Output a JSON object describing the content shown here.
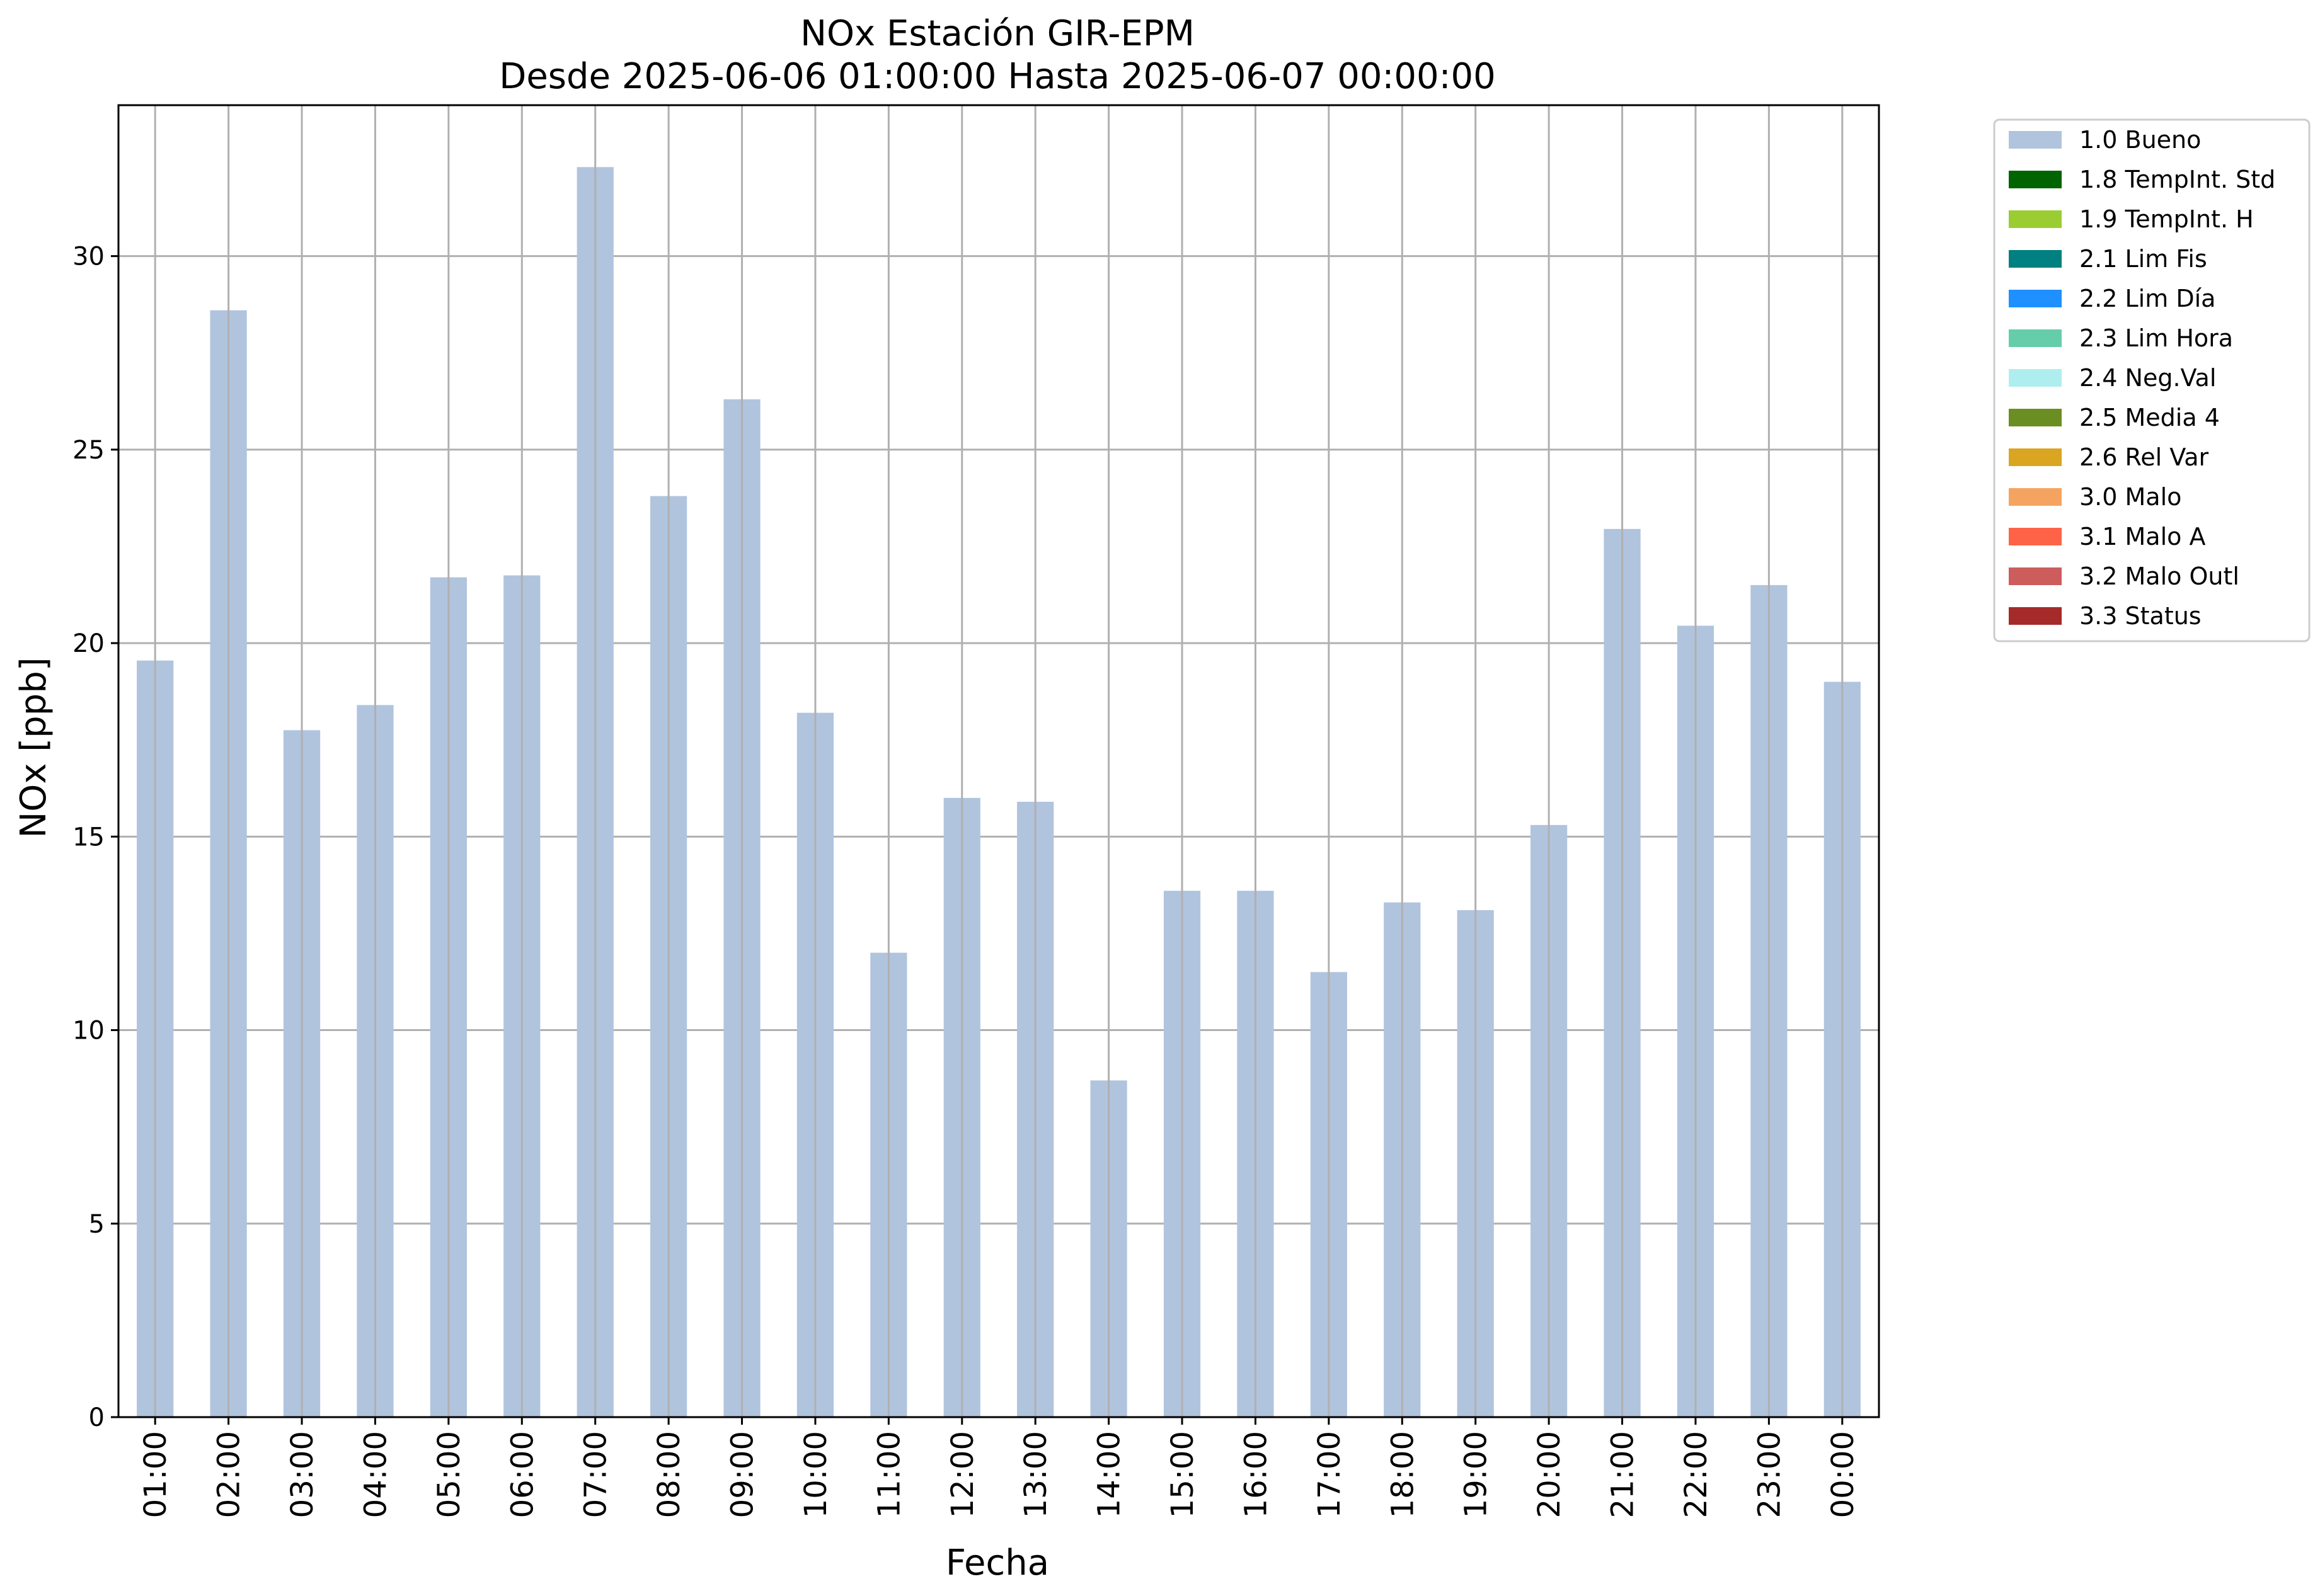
{
  "chart_data": {
    "type": "bar",
    "title": "NOx Estación GIR-EPM",
    "subtitle": "Desde 2025-06-06 01:00:00 Hasta 2025-06-07 00:00:00",
    "xlabel": "Fecha",
    "ylabel": "NOx [ppb]",
    "ylim": [
      0,
      33.9
    ],
    "yticks": [
      0,
      5,
      10,
      15,
      20,
      25,
      30
    ],
    "grid": true,
    "legend_position": "outside-right-top",
    "categories": [
      "01:00",
      "02:00",
      "03:00",
      "04:00",
      "05:00",
      "06:00",
      "07:00",
      "08:00",
      "09:00",
      "10:00",
      "11:00",
      "12:00",
      "13:00",
      "14:00",
      "15:00",
      "16:00",
      "17:00",
      "18:00",
      "19:00",
      "20:00",
      "21:00",
      "22:00",
      "23:00",
      "00:00"
    ],
    "series": [
      {
        "name": "1.0 Bueno",
        "color": "#b0c4de",
        "values": [
          19.55,
          28.6,
          17.75,
          18.4,
          21.7,
          21.75,
          32.3,
          23.8,
          26.3,
          18.2,
          12.0,
          16.0,
          15.9,
          8.7,
          13.6,
          13.6,
          11.5,
          13.3,
          13.1,
          15.3,
          22.95,
          20.45,
          21.5,
          19.0
        ]
      }
    ],
    "legend": [
      {
        "label": "1.0 Bueno",
        "color": "#b0c4de"
      },
      {
        "label": "1.8 TempInt. Std",
        "color": "#006400"
      },
      {
        "label": "1.9 TempInt. H",
        "color": "#9acd32"
      },
      {
        "label": "2.1 Lim Fis",
        "color": "#008080"
      },
      {
        "label": "2.2 Lim Día",
        "color": "#1e90ff"
      },
      {
        "label": "2.3 Lim Hora",
        "color": "#66cdaa"
      },
      {
        "label": "2.4 Neg.Val",
        "color": "#afeeee"
      },
      {
        "label": "2.5 Media 4",
        "color": "#6b8e23"
      },
      {
        "label": "2.6 Rel Var",
        "color": "#daa520"
      },
      {
        "label": "3.0 Malo",
        "color": "#f4a460"
      },
      {
        "label": "3.1 Malo A",
        "color": "#ff6347"
      },
      {
        "label": "3.2 Malo Outl",
        "color": "#cd5c5c"
      },
      {
        "label": "3.3 Status",
        "color": "#a52a2a"
      }
    ]
  }
}
